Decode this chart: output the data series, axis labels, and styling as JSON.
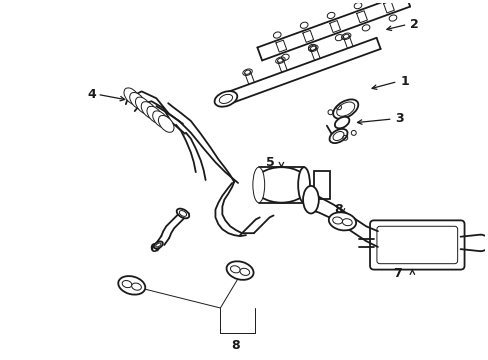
{
  "background_color": "#ffffff",
  "line_color": "#1a1a1a",
  "fig_width": 4.89,
  "fig_height": 3.6,
  "dpi": 100,
  "lw_main": 1.3,
  "lw_thin": 0.7,
  "lw_thick": 1.8
}
